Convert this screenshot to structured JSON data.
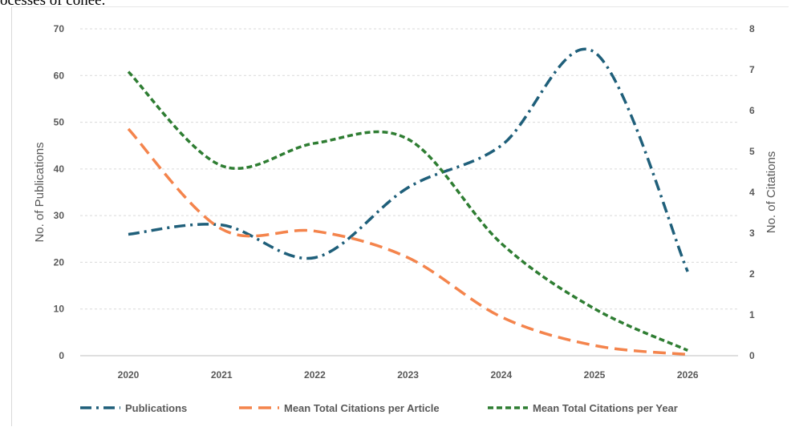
{
  "top_fragment": "ocesses of conee.",
  "chart_data": {
    "type": "line",
    "categories": [
      "2020",
      "2021",
      "2022",
      "2023",
      "2024",
      "2025",
      "2026"
    ],
    "y_left": {
      "label": "No. of Publications",
      "ticks": [
        "0",
        "10",
        "20",
        "30",
        "40",
        "50",
        "60",
        "70"
      ],
      "range": [
        0,
        70
      ]
    },
    "y_right": {
      "label": "No. of Citations",
      "ticks": [
        "0",
        "1",
        "2",
        "3",
        "4",
        "5",
        "6",
        "7",
        "8"
      ],
      "range": [
        0,
        8
      ]
    },
    "grid": true,
    "legend_position": "bottom",
    "series": [
      {
        "name": "Publications",
        "axis": "left",
        "color": "#1f5f7a",
        "dash": "dash-dot",
        "values": [
          26,
          28,
          21,
          36,
          45,
          65,
          18
        ]
      },
      {
        "name": "Mean Total Citations per Article",
        "axis": "right",
        "color": "#f4844c",
        "dash": "dash",
        "values": [
          5.55,
          3.1,
          3.05,
          2.4,
          0.95,
          0.25,
          0.03
        ]
      },
      {
        "name": "Mean Total Citations per Year",
        "axis": "right",
        "color": "#2e7d32",
        "dash": "short-dash",
        "values": [
          6.95,
          4.65,
          5.2,
          5.3,
          2.75,
          1.15,
          0.13
        ]
      }
    ]
  }
}
